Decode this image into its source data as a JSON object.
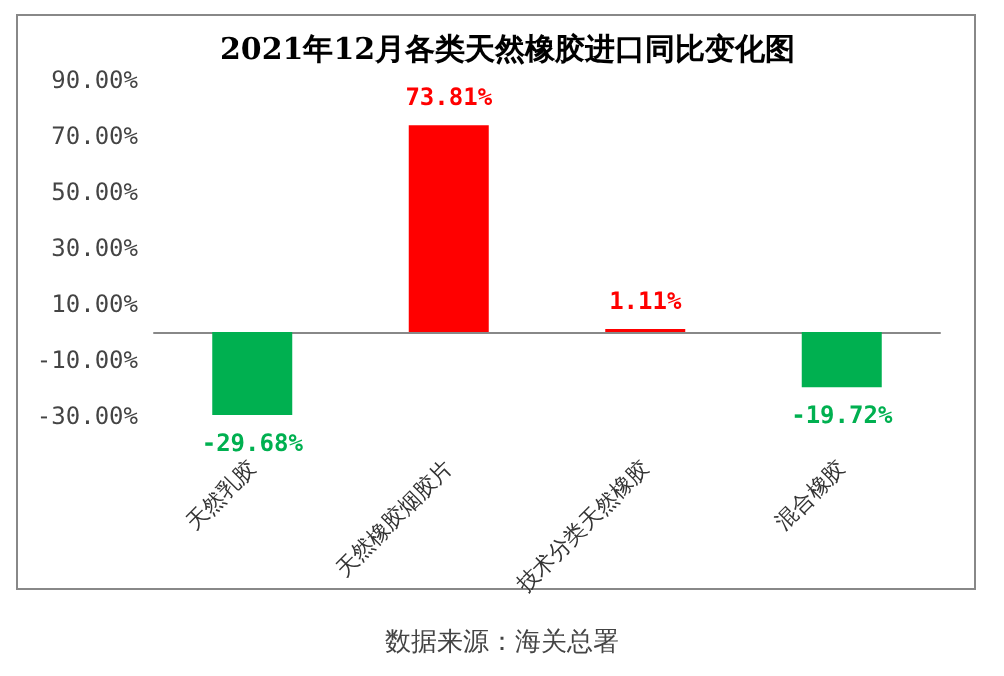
{
  "chart_data": {
    "type": "bar",
    "title": "2021年12月各类天然橡胶进口同比变化图",
    "categories": [
      "天然乳胶",
      "天然橡胶烟胶片",
      "技术分类天然橡胶",
      "混合橡胶"
    ],
    "values": [
      -29.68,
      73.81,
      1.11,
      -19.72
    ],
    "colors": [
      "#00b050",
      "#ff0000",
      "#ff0000",
      "#00b050"
    ],
    "value_labels": [
      "-29.68%",
      "73.81%",
      "1.11%",
      "-19.72%"
    ],
    "ylim": [
      -30,
      90
    ],
    "yticks": [
      {
        "value": -30,
        "label": "-30.00%"
      },
      {
        "value": -10,
        "label": "-10.00%"
      },
      {
        "value": 10,
        "label": "10.00%"
      },
      {
        "value": 30,
        "label": "30.00%"
      },
      {
        "value": 50,
        "label": "50.00%"
      },
      {
        "value": 70,
        "label": "70.00%"
      },
      {
        "value": 90,
        "label": "90.00%"
      }
    ],
    "grid": false,
    "annotations": [
      "数据来源：海关总署"
    ]
  }
}
